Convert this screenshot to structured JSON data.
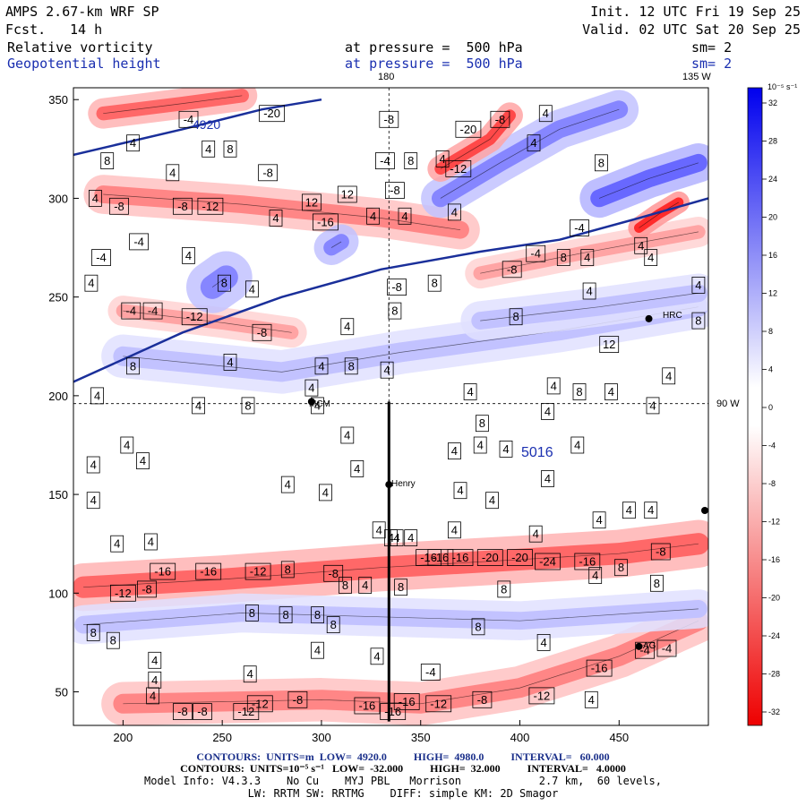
{
  "header": {
    "model": "AMPS 2.67-km WRF SP",
    "fcst_label": "Fcst.",
    "fcst_value": "14 h",
    "init": "Init. 12 UTC Fri 19 Sep 25",
    "valid": "Valid. 02 UTC Sat 20 Sep 25",
    "field1": "Relative vorticity",
    "field1_level": "at pressure =  500 hPa",
    "field1_sm": "sm= 2",
    "field2": "Geopotential height",
    "field2_level": "at pressure =  500 hPa",
    "field2_sm": "sm= 2"
  },
  "map_labels": {
    "lon_180": "180",
    "lon_135w": "135 W",
    "lat_90w": "90 W",
    "station_mcm": "MCM",
    "station_henry": "Henry",
    "station_hrc": "HRC",
    "station_ag": "AG",
    "height_4920": "4920",
    "height_5016": "5016"
  },
  "footer": {
    "line1": "CONTOURS:  UNITS=m  LOW=  4920.0          HIGH=  4980.0          INTERVAL=   60.000",
    "line2": "CONTOURS:  UNITS=10⁻⁵ s⁻¹   LOW=  -32.000          HIGH=  32.000          INTERVAL=   4.0000",
    "line3": "Model Info: V4.3.3    No Cu    MYJ PBL   Morrison            2.7 km,  60 levels,",
    "line4": "LW: RRTM SW: RRTMG    DIFF: simple KM: 2D Smagor"
  },
  "chart_data": {
    "type": "heatmap",
    "title": "Relative vorticity / Geopotential height at 500 hPa",
    "x_ticks": [
      200,
      250,
      300,
      350,
      400,
      450
    ],
    "y_ticks": [
      50,
      100,
      150,
      200,
      250,
      300,
      350
    ],
    "xlim": [
      175,
      495
    ],
    "ylim": [
      33,
      356
    ],
    "colorbar": {
      "unit_label": "10⁻⁵ s⁻¹",
      "ticks": [
        32,
        28,
        24,
        20,
        16,
        12,
        8,
        4,
        0,
        -4,
        -8,
        -12,
        -16,
        -20,
        -24,
        -28,
        -32
      ],
      "color_high": "#0000ee",
      "color_zero": "#ffffff",
      "color_low": "#ee0000"
    },
    "bands": [
      {
        "sign": "neg",
        "magnitude": 16,
        "pts": [
          [
            200,
            44
          ],
          [
            300,
            46
          ],
          [
            350,
            44
          ],
          [
            400,
            52
          ],
          [
            450,
            68
          ],
          [
            490,
            86
          ]
        ],
        "width": 10
      },
      {
        "sign": "neg",
        "magnitude": 20,
        "pts": [
          [
            180,
            103
          ],
          [
            250,
            107
          ],
          [
            330,
            113
          ],
          [
            400,
            117
          ],
          [
            450,
            120
          ],
          [
            490,
            125
          ]
        ],
        "width": 11
      },
      {
        "sign": "pos",
        "magnitude": 8,
        "pts": [
          [
            180,
            84
          ],
          [
            260,
            90
          ],
          [
            330,
            88
          ],
          [
            400,
            86
          ],
          [
            490,
            92
          ]
        ],
        "width": 9
      },
      {
        "sign": "pos",
        "magnitude": 8,
        "pts": [
          [
            200,
            220
          ],
          [
            280,
            212
          ],
          [
            340,
            222
          ],
          [
            420,
            233
          ],
          [
            490,
            245
          ]
        ],
        "width": 10
      },
      {
        "sign": "pos",
        "magnitude": 8,
        "pts": [
          [
            380,
            238
          ],
          [
            440,
            245
          ],
          [
            490,
            252
          ]
        ],
        "width": 9
      },
      {
        "sign": "neg",
        "magnitude": 16,
        "pts": [
          [
            190,
            302
          ],
          [
            260,
            297
          ],
          [
            330,
            290
          ],
          [
            370,
            284
          ]
        ],
        "width": 9
      },
      {
        "sign": "neg",
        "magnitude": 12,
        "pts": [
          [
            200,
            243
          ],
          [
            250,
            237
          ],
          [
            285,
            232
          ]
        ],
        "width": 7
      },
      {
        "sign": "neg",
        "magnitude": 12,
        "pts": [
          [
            380,
            262
          ],
          [
            430,
            272
          ],
          [
            490,
            283
          ]
        ],
        "width": 7
      },
      {
        "sign": "pos",
        "magnitude": 16,
        "pts": [
          [
            360,
            300
          ],
          [
            390,
            318
          ],
          [
            420,
            335
          ],
          [
            450,
            345
          ]
        ],
        "width": 9
      },
      {
        "sign": "neg",
        "magnitude": 24,
        "pts": [
          [
            360,
            315
          ],
          [
            385,
            330
          ],
          [
            395,
            342
          ]
        ],
        "width": 6
      },
      {
        "sign": "pos",
        "magnitude": 20,
        "pts": [
          [
            440,
            300
          ],
          [
            465,
            310
          ],
          [
            490,
            318
          ]
        ],
        "width": 9
      },
      {
        "sign": "neg",
        "magnitude": 28,
        "pts": [
          [
            460,
            285
          ],
          [
            470,
            292
          ],
          [
            480,
            298
          ]
        ],
        "width": 5
      },
      {
        "sign": "neg",
        "magnitude": 20,
        "pts": [
          [
            190,
            343
          ],
          [
            230,
            348
          ],
          [
            260,
            352
          ]
        ],
        "width": 7
      },
      {
        "sign": "pos",
        "magnitude": 16,
        "pts": [
          [
            245,
            255
          ],
          [
            252,
            260
          ]
        ],
        "width": 12
      },
      {
        "sign": "pos",
        "magnitude": 16,
        "pts": [
          [
            305,
            275
          ],
          [
            310,
            278
          ]
        ],
        "width": 8
      }
    ],
    "contour_labels": [
      {
        "x": 233,
        "y": 340,
        "t": "-4"
      },
      {
        "x": 275,
        "y": 343,
        "t": "-20"
      },
      {
        "x": 334,
        "y": 340,
        "t": "-8"
      },
      {
        "x": 390,
        "y": 340,
        "t": "-8"
      },
      {
        "x": 413,
        "y": 343,
        "t": "4"
      },
      {
        "x": 374,
        "y": 335,
        "t": "-20"
      },
      {
        "x": 205,
        "y": 328,
        "t": "4"
      },
      {
        "x": 243,
        "y": 325,
        "t": "4"
      },
      {
        "x": 254,
        "y": 325,
        "t": "8"
      },
      {
        "x": 192,
        "y": 319,
        "t": "8"
      },
      {
        "x": 225,
        "y": 313,
        "t": "4"
      },
      {
        "x": 273,
        "y": 313,
        "t": "-8"
      },
      {
        "x": 332,
        "y": 319,
        "t": "-4"
      },
      {
        "x": 345,
        "y": 319,
        "t": "8"
      },
      {
        "x": 361,
        "y": 320,
        "t": "4"
      },
      {
        "x": 369,
        "y": 315,
        "t": "-12"
      },
      {
        "x": 407,
        "y": 328,
        "t": "4"
      },
      {
        "x": 441,
        "y": 318,
        "t": "8"
      },
      {
        "x": 186,
        "y": 300,
        "t": "4"
      },
      {
        "x": 198,
        "y": 296,
        "t": "-8"
      },
      {
        "x": 230,
        "y": 296,
        "t": "-8"
      },
      {
        "x": 244,
        "y": 296,
        "t": "-12"
      },
      {
        "x": 295,
        "y": 298,
        "t": "12"
      },
      {
        "x": 313,
        "y": 302,
        "t": "12"
      },
      {
        "x": 337,
        "y": 304,
        "t": "-8"
      },
      {
        "x": 302,
        "y": 288,
        "t": "-16"
      },
      {
        "x": 277,
        "y": 290,
        "t": "4"
      },
      {
        "x": 326,
        "y": 291,
        "t": "4"
      },
      {
        "x": 342,
        "y": 291,
        "t": "4"
      },
      {
        "x": 367,
        "y": 293,
        "t": "4"
      },
      {
        "x": 208,
        "y": 278,
        "t": "-4"
      },
      {
        "x": 189,
        "y": 270,
        "t": "-4"
      },
      {
        "x": 233,
        "y": 271,
        "t": "4"
      },
      {
        "x": 430,
        "y": 285,
        "t": "-4"
      },
      {
        "x": 408,
        "y": 272,
        "t": "-4"
      },
      {
        "x": 422,
        "y": 270,
        "t": "8"
      },
      {
        "x": 434,
        "y": 270,
        "t": "4"
      },
      {
        "x": 466,
        "y": 270,
        "t": "4"
      },
      {
        "x": 461,
        "y": 276,
        "t": "4"
      },
      {
        "x": 396,
        "y": 264,
        "t": "-8"
      },
      {
        "x": 184,
        "y": 257,
        "t": "4"
      },
      {
        "x": 251,
        "y": 257,
        "t": "8"
      },
      {
        "x": 265,
        "y": 254,
        "t": "4"
      },
      {
        "x": 357,
        "y": 257,
        "t": "8"
      },
      {
        "x": 338,
        "y": 255,
        "t": "-8"
      },
      {
        "x": 435,
        "y": 253,
        "t": "4"
      },
      {
        "x": 490,
        "y": 256,
        "t": "4"
      },
      {
        "x": 204,
        "y": 243,
        "t": "-4"
      },
      {
        "x": 215,
        "y": 243,
        "t": "-4"
      },
      {
        "x": 236,
        "y": 240,
        "t": "-12"
      },
      {
        "x": 337,
        "y": 243,
        "t": "8"
      },
      {
        "x": 398,
        "y": 240,
        "t": "8"
      },
      {
        "x": 270,
        "y": 232,
        "t": "-8"
      },
      {
        "x": 313,
        "y": 235,
        "t": "4"
      },
      {
        "x": 445,
        "y": 226,
        "t": "12"
      },
      {
        "x": 490,
        "y": 238,
        "t": "8"
      },
      {
        "x": 205,
        "y": 215,
        "t": "8"
      },
      {
        "x": 254,
        "y": 217,
        "t": "4"
      },
      {
        "x": 300,
        "y": 215,
        "t": "4"
      },
      {
        "x": 315,
        "y": 215,
        "t": "8"
      },
      {
        "x": 333,
        "y": 213,
        "t": "4"
      },
      {
        "x": 475,
        "y": 210,
        "t": "4"
      },
      {
        "x": 187,
        "y": 200,
        "t": "4"
      },
      {
        "x": 295,
        "y": 204,
        "t": "4"
      },
      {
        "x": 375,
        "y": 202,
        "t": "4"
      },
      {
        "x": 430,
        "y": 202,
        "t": "8"
      },
      {
        "x": 446,
        "y": 202,
        "t": "4"
      },
      {
        "x": 417,
        "y": 205,
        "t": "4"
      },
      {
        "x": 238,
        "y": 195,
        "t": "4"
      },
      {
        "x": 263,
        "y": 195,
        "t": "8"
      },
      {
        "x": 298,
        "y": 195,
        "t": "4"
      },
      {
        "x": 414,
        "y": 192,
        "t": "4"
      },
      {
        "x": 467,
        "y": 195,
        "t": "4"
      },
      {
        "x": 381,
        "y": 186,
        "t": "8"
      },
      {
        "x": 380,
        "y": 175,
        "t": "4"
      },
      {
        "x": 313,
        "y": 180,
        "t": "4"
      },
      {
        "x": 202,
        "y": 175,
        "t": "4"
      },
      {
        "x": 393,
        "y": 173,
        "t": "4"
      },
      {
        "x": 429,
        "y": 175,
        "t": "4"
      },
      {
        "x": 367,
        "y": 172,
        "t": "4"
      },
      {
        "x": 185,
        "y": 165,
        "t": "4"
      },
      {
        "x": 210,
        "y": 167,
        "t": "4"
      },
      {
        "x": 318,
        "y": 163,
        "t": "4"
      },
      {
        "x": 414,
        "y": 158,
        "t": "4"
      },
      {
        "x": 283,
        "y": 155,
        "t": "4"
      },
      {
        "x": 302,
        "y": 151,
        "t": "4"
      },
      {
        "x": 370,
        "y": 152,
        "t": "4"
      },
      {
        "x": 185,
        "y": 147,
        "t": "4"
      },
      {
        "x": 386,
        "y": 147,
        "t": "4"
      },
      {
        "x": 466,
        "y": 142,
        "t": "4"
      },
      {
        "x": 455,
        "y": 142,
        "t": "4"
      },
      {
        "x": 440,
        "y": 137,
        "t": "4"
      },
      {
        "x": 367,
        "y": 132,
        "t": "4"
      },
      {
        "x": 408,
        "y": 130,
        "t": "4"
      },
      {
        "x": 329,
        "y": 132,
        "t": "4"
      },
      {
        "x": 335,
        "y": 128,
        "t": "4"
      },
      {
        "x": 214,
        "y": 126,
        "t": "4"
      },
      {
        "x": 197,
        "y": 125,
        "t": "4"
      },
      {
        "x": 338,
        "y": 128,
        "t": "4"
      },
      {
        "x": 360,
        "y": 118,
        "t": "-16"
      },
      {
        "x": 345,
        "y": 128,
        "t": "4"
      },
      {
        "x": 471,
        "y": 121,
        "t": "-8"
      },
      {
        "x": 434,
        "y": 116,
        "t": "-16"
      },
      {
        "x": 370,
        "y": 118,
        "t": "-16"
      },
      {
        "x": 385,
        "y": 118,
        "t": "-20"
      },
      {
        "x": 400,
        "y": 118,
        "t": "-20"
      },
      {
        "x": 414,
        "y": 116,
        "t": "-24"
      },
      {
        "x": 220,
        "y": 111,
        "t": "-16"
      },
      {
        "x": 243,
        "y": 111,
        "t": "-16"
      },
      {
        "x": 268,
        "y": 111,
        "t": "-12"
      },
      {
        "x": 283,
        "y": 112,
        "t": "8"
      },
      {
        "x": 306,
        "y": 110,
        "t": "-8"
      },
      {
        "x": 354,
        "y": 118,
        "t": "-16"
      },
      {
        "x": 312,
        "y": 104,
        "t": "8"
      },
      {
        "x": 322,
        "y": 104,
        "t": "4"
      },
      {
        "x": 340,
        "y": 103,
        "t": "8"
      },
      {
        "x": 392,
        "y": 102,
        "t": "8"
      },
      {
        "x": 451,
        "y": 113,
        "t": "8"
      },
      {
        "x": 438,
        "y": 109,
        "t": "4"
      },
      {
        "x": 469,
        "y": 105,
        "t": "8"
      },
      {
        "x": 200,
        "y": 100,
        "t": "-12"
      },
      {
        "x": 212,
        "y": 102,
        "t": "-8"
      },
      {
        "x": 265,
        "y": 90,
        "t": "8"
      },
      {
        "x": 282,
        "y": 89,
        "t": "8"
      },
      {
        "x": 298,
        "y": 89,
        "t": "8"
      },
      {
        "x": 306,
        "y": 84,
        "t": "8"
      },
      {
        "x": 379,
        "y": 83,
        "t": "8"
      },
      {
        "x": 412,
        "y": 75,
        "t": "4"
      },
      {
        "x": 185,
        "y": 80,
        "t": "8"
      },
      {
        "x": 195,
        "y": 76,
        "t": "8"
      },
      {
        "x": 298,
        "y": 71,
        "t": "4"
      },
      {
        "x": 328,
        "y": 68,
        "t": "4"
      },
      {
        "x": 216,
        "y": 66,
        "t": "4"
      },
      {
        "x": 264,
        "y": 59,
        "t": "4"
      },
      {
        "x": 216,
        "y": 56,
        "t": "4"
      },
      {
        "x": 355,
        "y": 60,
        "t": "-4"
      },
      {
        "x": 440,
        "y": 62,
        "t": "-16"
      },
      {
        "x": 463,
        "y": 71,
        "t": "-4"
      },
      {
        "x": 474,
        "y": 72,
        "t": "-4"
      },
      {
        "x": 215,
        "y": 48,
        "t": "4"
      },
      {
        "x": 269,
        "y": 44,
        "t": "-12"
      },
      {
        "x": 288,
        "y": 46,
        "t": "-8"
      },
      {
        "x": 323,
        "y": 43,
        "t": "-16"
      },
      {
        "x": 343,
        "y": 45,
        "t": "-16"
      },
      {
        "x": 359,
        "y": 44,
        "t": "-12"
      },
      {
        "x": 381,
        "y": 46,
        "t": "-8"
      },
      {
        "x": 411,
        "y": 48,
        "t": "-12"
      },
      {
        "x": 436,
        "y": 46,
        "t": "4"
      },
      {
        "x": 230,
        "y": 40,
        "t": "-8"
      },
      {
        "x": 240,
        "y": 40,
        "t": "-8"
      },
      {
        "x": 262,
        "y": 40,
        "t": "-12"
      },
      {
        "x": 336,
        "y": 40,
        "t": "-16"
      }
    ],
    "height_contour": [
      [
        175,
        207
      ],
      [
        230,
        232
      ],
      [
        280,
        250
      ],
      [
        330,
        264
      ],
      [
        380,
        273
      ],
      [
        420,
        279
      ],
      [
        460,
        290
      ],
      [
        495,
        300
      ]
    ],
    "height_contour_2": [
      [
        175,
        322
      ],
      [
        230,
        335
      ],
      [
        270,
        345
      ],
      [
        300,
        350
      ]
    ],
    "section_line": {
      "x": 334,
      "y_from": 35,
      "y_to": 197
    },
    "stations": [
      {
        "name": "MCM",
        "x": 295,
        "y": 197
      },
      {
        "name": "Henry",
        "x": 334,
        "y": 155
      },
      {
        "name": "HRC",
        "x": 465,
        "y": 239
      },
      {
        "name": "AG",
        "x": 460,
        "y": 73
      }
    ]
  }
}
